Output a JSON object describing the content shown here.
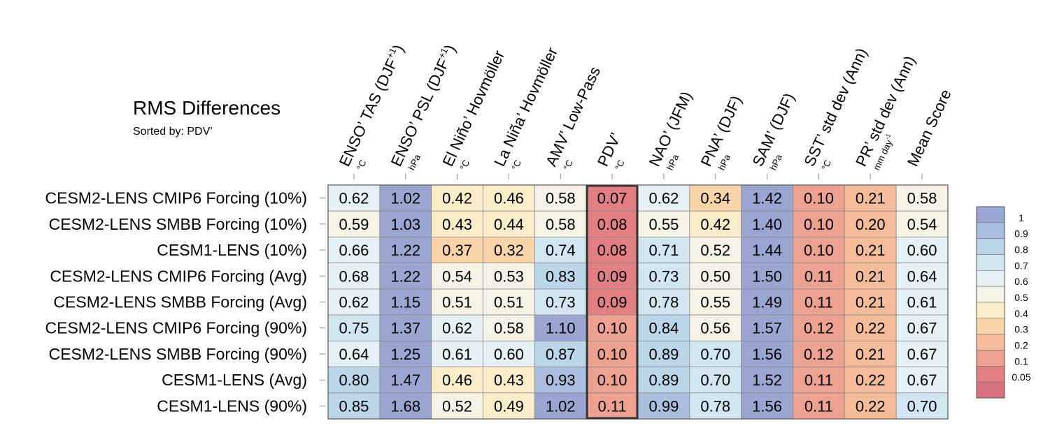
{
  "chart_data": {
    "type": "heatmap",
    "title": "RMS Differences",
    "subtitle": "Sorted by: PDV’",
    "highlight_column": 5,
    "columns": [
      {
        "label": "ENSO’ TAS (DJF",
        "sup": "+1",
        "tail": ")",
        "unit": "°C"
      },
      {
        "label": "ENSO’ PSL (DJF",
        "sup": "+1",
        "tail": ")",
        "unit": "hPa"
      },
      {
        "label": "El Niño’ Hovmöller",
        "unit": "°C"
      },
      {
        "label": "La Niña’ Hovmöller",
        "unit": "°C"
      },
      {
        "label": "AMV’ Low-Pass",
        "unit": "°C"
      },
      {
        "label": "PDV’",
        "unit": "°C"
      },
      {
        "label": "NAO’ (JFM)",
        "unit": "hPa"
      },
      {
        "label": "PNA’ (DJF)",
        "unit": "hPa"
      },
      {
        "label": "SAM’ (DJF)",
        "unit": "hPa"
      },
      {
        "label": "SST’ std dev (Ann)",
        "unit": "°C"
      },
      {
        "label": "PR’ std dev (Ann)",
        "unit": "mm day",
        "unit_sup": "-1"
      },
      {
        "label": "Mean Score",
        "unit": ""
      }
    ],
    "rows": [
      "CESM2-LENS CMIP6 Forcing (10%)",
      "CESM2-LENS SMBB Forcing (10%)",
      "CESM1-LENS (10%)",
      "CESM2-LENS CMIP6 Forcing (Avg)",
      "CESM2-LENS SMBB Forcing (Avg)",
      "CESM2-LENS CMIP6 Forcing (90%)",
      "CESM2-LENS SMBB Forcing (90%)",
      "CESM1-LENS (Avg)",
      "CESM1-LENS (90%)"
    ],
    "values": [
      [
        "0.62",
        "1.02",
        "0.42",
        "0.46",
        "0.58",
        "0.07",
        "0.62",
        "0.34",
        "1.42",
        "0.10",
        "0.21",
        "0.58"
      ],
      [
        "0.59",
        "1.03",
        "0.43",
        "0.44",
        "0.58",
        "0.08",
        "0.55",
        "0.42",
        "1.40",
        "0.10",
        "0.20",
        "0.54"
      ],
      [
        "0.66",
        "1.22",
        "0.37",
        "0.32",
        "0.74",
        "0.08",
        "0.71",
        "0.52",
        "1.44",
        "0.10",
        "0.21",
        "0.60"
      ],
      [
        "0.68",
        "1.22",
        "0.54",
        "0.53",
        "0.83",
        "0.09",
        "0.73",
        "0.50",
        "1.50",
        "0.11",
        "0.21",
        "0.64"
      ],
      [
        "0.62",
        "1.15",
        "0.51",
        "0.51",
        "0.73",
        "0.09",
        "0.78",
        "0.55",
        "1.49",
        "0.11",
        "0.21",
        "0.61"
      ],
      [
        "0.75",
        "1.37",
        "0.62",
        "0.58",
        "1.10",
        "0.10",
        "0.84",
        "0.56",
        "1.57",
        "0.12",
        "0.22",
        "0.67"
      ],
      [
        "0.64",
        "1.25",
        "0.61",
        "0.60",
        "0.87",
        "0.10",
        "0.89",
        "0.70",
        "1.56",
        "0.12",
        "0.21",
        "0.67"
      ],
      [
        "0.80",
        "1.47",
        "0.46",
        "0.43",
        "0.93",
        "0.10",
        "0.89",
        "0.70",
        "1.52",
        "0.11",
        "0.22",
        "0.67"
      ],
      [
        "0.85",
        "1.68",
        "0.52",
        "0.49",
        "1.02",
        "0.11",
        "0.99",
        "0.78",
        "1.56",
        "0.11",
        "0.22",
        "0.70"
      ]
    ],
    "colorbar": {
      "ticks": [
        "1",
        "0.9",
        "0.8",
        "0.7",
        "0.6",
        "0.5",
        "0.4",
        "0.3",
        "0.2",
        "0.1",
        "0.05"
      ],
      "colors": [
        "#9aa6d1",
        "#aabfdf",
        "#bcd6e9",
        "#d2e6f1",
        "#e6f1f6",
        "#f5f3e6",
        "#fbecca",
        "#f9d4a8",
        "#f4bc98",
        "#eda191",
        "#e27f83",
        "#d8727e"
      ]
    }
  }
}
